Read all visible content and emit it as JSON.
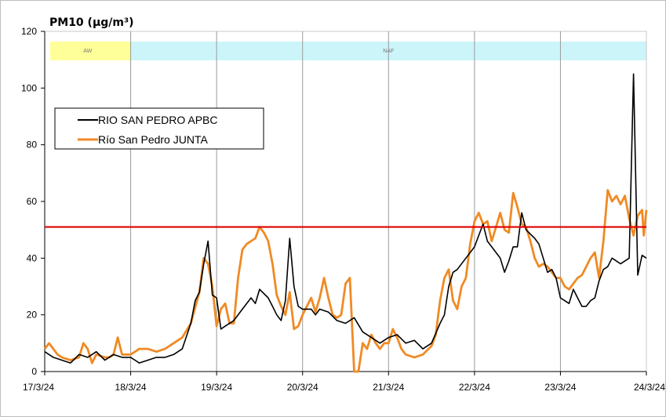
{
  "chart_data": {
    "type": "line",
    "title": "PM10 (µg/m³)",
    "xlabel": "",
    "ylabel": "",
    "ylim": [
      0,
      120
    ],
    "yticks": [
      0,
      20,
      40,
      60,
      80,
      100,
      120
    ],
    "xlim": [
      0,
      7
    ],
    "x_ticks": [
      {
        "x": 0,
        "label": "17/3/24"
      },
      {
        "x": 1,
        "label": "18/3/24"
      },
      {
        "x": 2,
        "label": "19/3/24"
      },
      {
        "x": 3,
        "label": "20/3/24"
      },
      {
        "x": 4,
        "label": "21/3/24"
      },
      {
        "x": 5,
        "label": "22/3/24"
      },
      {
        "x": 6,
        "label": "23/3/24"
      },
      {
        "x": 7,
        "label": "24/3/24"
      }
    ],
    "grid": "vertical lines at each date",
    "legend_position": "upper-left",
    "bands": [
      {
        "label": "AW",
        "start": 0,
        "end": 1.0,
        "color": "#ffff99"
      },
      {
        "label": "NAF",
        "start": 1.0,
        "end": 7.0,
        "color": "#ccf5fa"
      }
    ],
    "reference_line": {
      "value": 51,
      "color": "#e00000"
    },
    "series": [
      {
        "name": "RIO SAN PEDRO APBC",
        "color": "#000000",
        "points": [
          [
            0.0,
            7
          ],
          [
            0.1,
            5
          ],
          [
            0.2,
            4
          ],
          [
            0.3,
            3
          ],
          [
            0.4,
            6
          ],
          [
            0.5,
            5
          ],
          [
            0.6,
            7
          ],
          [
            0.7,
            4
          ],
          [
            0.8,
            6
          ],
          [
            0.9,
            5
          ],
          [
            1.0,
            5
          ],
          [
            1.05,
            4
          ],
          [
            1.1,
            3
          ],
          [
            1.2,
            4
          ],
          [
            1.3,
            5
          ],
          [
            1.4,
            5
          ],
          [
            1.5,
            6
          ],
          [
            1.6,
            8
          ],
          [
            1.7,
            17
          ],
          [
            1.75,
            25
          ],
          [
            1.8,
            28
          ],
          [
            1.85,
            38
          ],
          [
            1.9,
            46
          ],
          [
            1.95,
            27
          ],
          [
            2.0,
            26
          ],
          [
            2.05,
            15
          ],
          [
            2.1,
            16
          ],
          [
            2.2,
            18
          ],
          [
            2.3,
            22
          ],
          [
            2.4,
            26
          ],
          [
            2.45,
            24
          ],
          [
            2.5,
            29
          ],
          [
            2.6,
            26
          ],
          [
            2.65,
            23
          ],
          [
            2.7,
            20
          ],
          [
            2.75,
            18
          ],
          [
            2.8,
            25
          ],
          [
            2.85,
            47
          ],
          [
            2.9,
            30
          ],
          [
            2.95,
            23
          ],
          [
            3.0,
            22
          ],
          [
            3.1,
            22
          ],
          [
            3.15,
            20
          ],
          [
            3.2,
            22
          ],
          [
            3.3,
            21
          ],
          [
            3.4,
            18
          ],
          [
            3.5,
            17
          ],
          [
            3.6,
            19
          ],
          [
            3.7,
            14
          ],
          [
            3.8,
            12
          ],
          [
            3.9,
            10
          ],
          [
            4.0,
            12
          ],
          [
            4.1,
            13
          ],
          [
            4.2,
            10
          ],
          [
            4.3,
            11
          ],
          [
            4.4,
            8
          ],
          [
            4.5,
            10
          ],
          [
            4.6,
            17
          ],
          [
            4.65,
            20
          ],
          [
            4.7,
            30
          ],
          [
            4.75,
            35
          ],
          [
            4.8,
            36
          ],
          [
            4.9,
            40
          ],
          [
            5.0,
            44
          ],
          [
            5.05,
            48
          ],
          [
            5.1,
            52
          ],
          [
            5.15,
            46
          ],
          [
            5.2,
            44
          ],
          [
            5.3,
            40
          ],
          [
            5.35,
            35
          ],
          [
            5.4,
            39
          ],
          [
            5.45,
            44
          ],
          [
            5.5,
            44
          ],
          [
            5.55,
            56
          ],
          [
            5.6,
            50
          ],
          [
            5.7,
            47
          ],
          [
            5.75,
            45
          ],
          [
            5.8,
            40
          ],
          [
            5.85,
            35
          ],
          [
            5.9,
            36
          ],
          [
            5.95,
            33
          ],
          [
            6.0,
            26
          ],
          [
            6.05,
            25
          ],
          [
            6.1,
            24
          ],
          [
            6.15,
            29
          ],
          [
            6.2,
            26
          ],
          [
            6.25,
            23
          ],
          [
            6.3,
            23
          ],
          [
            6.35,
            25
          ],
          [
            6.4,
            26
          ],
          [
            6.45,
            32
          ],
          [
            6.5,
            36
          ],
          [
            6.55,
            37
          ],
          [
            6.6,
            40
          ],
          [
            6.65,
            39
          ],
          [
            6.7,
            38
          ],
          [
            6.75,
            39
          ],
          [
            6.8,
            40
          ],
          [
            6.85,
            105
          ],
          [
            6.9,
            34
          ],
          [
            6.95,
            41
          ],
          [
            7.0,
            40
          ]
        ]
      },
      {
        "name": "Río San Pedro JUNTA",
        "color": "#f08a24",
        "points": [
          [
            0.0,
            8
          ],
          [
            0.05,
            10
          ],
          [
            0.1,
            8
          ],
          [
            0.15,
            6
          ],
          [
            0.2,
            5
          ],
          [
            0.3,
            4
          ],
          [
            0.4,
            5
          ],
          [
            0.45,
            10
          ],
          [
            0.5,
            8
          ],
          [
            0.55,
            3
          ],
          [
            0.6,
            6
          ],
          [
            0.7,
            5
          ],
          [
            0.75,
            5
          ],
          [
            0.8,
            6
          ],
          [
            0.85,
            12
          ],
          [
            0.9,
            6
          ],
          [
            1.0,
            6
          ],
          [
            1.05,
            7
          ],
          [
            1.1,
            8
          ],
          [
            1.2,
            8
          ],
          [
            1.3,
            7
          ],
          [
            1.4,
            8
          ],
          [
            1.5,
            10
          ],
          [
            1.6,
            12
          ],
          [
            1.7,
            17
          ],
          [
            1.8,
            28
          ],
          [
            1.85,
            40
          ],
          [
            1.9,
            38
          ],
          [
            1.95,
            30
          ],
          [
            2.0,
            16
          ],
          [
            2.05,
            22
          ],
          [
            2.1,
            24
          ],
          [
            2.15,
            17
          ],
          [
            2.2,
            17
          ],
          [
            2.25,
            33
          ],
          [
            2.3,
            43
          ],
          [
            2.35,
            45
          ],
          [
            2.4,
            46
          ],
          [
            2.45,
            47
          ],
          [
            2.5,
            51
          ],
          [
            2.55,
            49
          ],
          [
            2.6,
            46
          ],
          [
            2.65,
            38
          ],
          [
            2.7,
            27
          ],
          [
            2.75,
            23
          ],
          [
            2.8,
            20
          ],
          [
            2.85,
            28
          ],
          [
            2.9,
            15
          ],
          [
            2.95,
            16
          ],
          [
            3.0,
            20
          ],
          [
            3.05,
            23
          ],
          [
            3.1,
            26
          ],
          [
            3.15,
            21
          ],
          [
            3.2,
            26
          ],
          [
            3.25,
            33
          ],
          [
            3.3,
            26
          ],
          [
            3.35,
            20
          ],
          [
            3.4,
            19
          ],
          [
            3.45,
            20
          ],
          [
            3.5,
            31
          ],
          [
            3.55,
            33
          ],
          [
            3.6,
            0
          ],
          [
            3.65,
            0
          ],
          [
            3.7,
            10
          ],
          [
            3.75,
            8
          ],
          [
            3.8,
            13
          ],
          [
            3.85,
            10
          ],
          [
            3.9,
            8
          ],
          [
            3.95,
            10
          ],
          [
            4.0,
            10
          ],
          [
            4.05,
            15
          ],
          [
            4.1,
            12
          ],
          [
            4.15,
            8
          ],
          [
            4.2,
            6
          ],
          [
            4.3,
            5
          ],
          [
            4.4,
            6
          ],
          [
            4.5,
            9
          ],
          [
            4.55,
            13
          ],
          [
            4.6,
            25
          ],
          [
            4.65,
            33
          ],
          [
            4.7,
            36
          ],
          [
            4.75,
            25
          ],
          [
            4.8,
            22
          ],
          [
            4.85,
            30
          ],
          [
            4.9,
            33
          ],
          [
            4.95,
            45
          ],
          [
            5.0,
            53
          ],
          [
            5.05,
            56
          ],
          [
            5.1,
            52
          ],
          [
            5.15,
            53
          ],
          [
            5.2,
            46
          ],
          [
            5.25,
            51
          ],
          [
            5.3,
            56
          ],
          [
            5.35,
            50
          ],
          [
            5.4,
            49
          ],
          [
            5.45,
            63
          ],
          [
            5.5,
            58
          ],
          [
            5.55,
            52
          ],
          [
            5.6,
            51
          ],
          [
            5.65,
            46
          ],
          [
            5.7,
            40
          ],
          [
            5.75,
            37
          ],
          [
            5.8,
            38
          ],
          [
            5.85,
            37
          ],
          [
            5.9,
            35
          ],
          [
            5.95,
            33
          ],
          [
            6.0,
            33
          ],
          [
            6.05,
            30
          ],
          [
            6.1,
            29
          ],
          [
            6.15,
            31
          ],
          [
            6.2,
            33
          ],
          [
            6.25,
            34
          ],
          [
            6.3,
            37
          ],
          [
            6.35,
            40
          ],
          [
            6.4,
            42
          ],
          [
            6.45,
            33
          ],
          [
            6.5,
            46
          ],
          [
            6.55,
            64
          ],
          [
            6.6,
            60
          ],
          [
            6.65,
            62
          ],
          [
            6.7,
            59
          ],
          [
            6.75,
            62
          ],
          [
            6.8,
            54
          ],
          [
            6.85,
            48
          ],
          [
            6.9,
            55
          ],
          [
            6.95,
            57
          ],
          [
            6.97,
            48
          ],
          [
            7.0,
            57
          ]
        ]
      }
    ]
  }
}
